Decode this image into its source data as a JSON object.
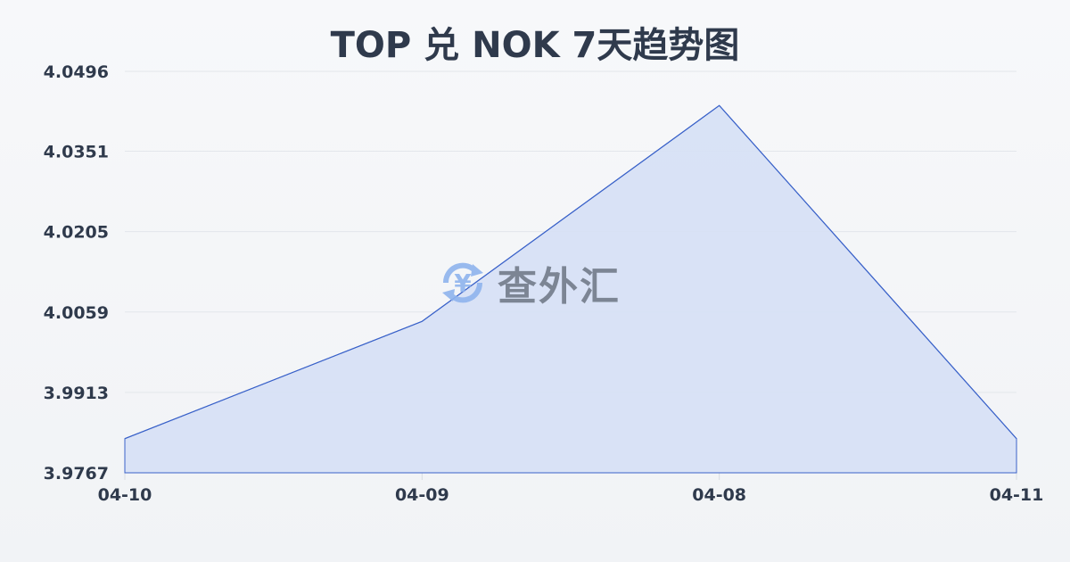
{
  "chart_data": {
    "type": "area",
    "title": "TOP 兑 NOK 7天趋势图",
    "categories": [
      "04-10",
      "04-09",
      "04-08",
      "04-11"
    ],
    "values": [
      3.9829,
      4.0042,
      4.0434,
      3.9829
    ],
    "yticks": [
      "3.9767",
      "3.9913",
      "4.0059",
      "4.0205",
      "4.0351",
      "4.0496"
    ],
    "ylim": [
      3.9767,
      4.0496
    ],
    "grid": true,
    "line_color": "#3a62c9",
    "fill_color": "#d6e0f5"
  },
  "watermark": {
    "text": "查外汇",
    "icon": "yen-exchange-icon"
  }
}
